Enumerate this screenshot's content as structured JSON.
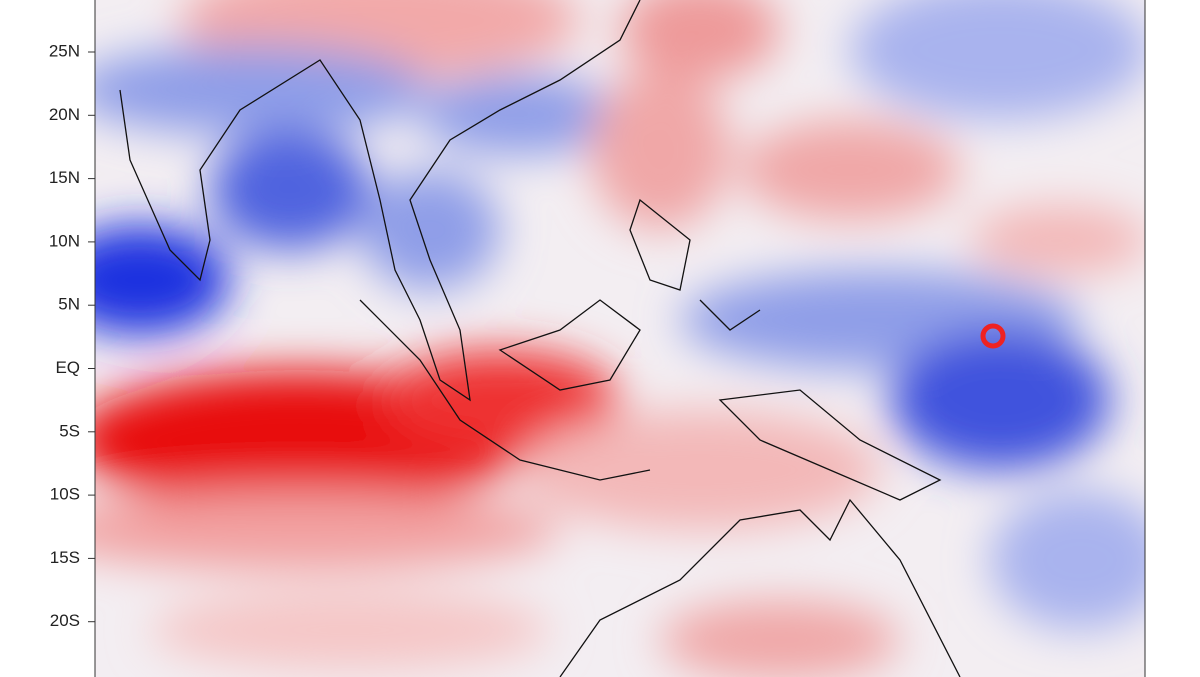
{
  "map": {
    "lat_labels": [
      "25N",
      "20N",
      "15N",
      "10N",
      "5N",
      "EQ",
      "5S",
      "10S",
      "15S",
      "20S"
    ]
  }
}
